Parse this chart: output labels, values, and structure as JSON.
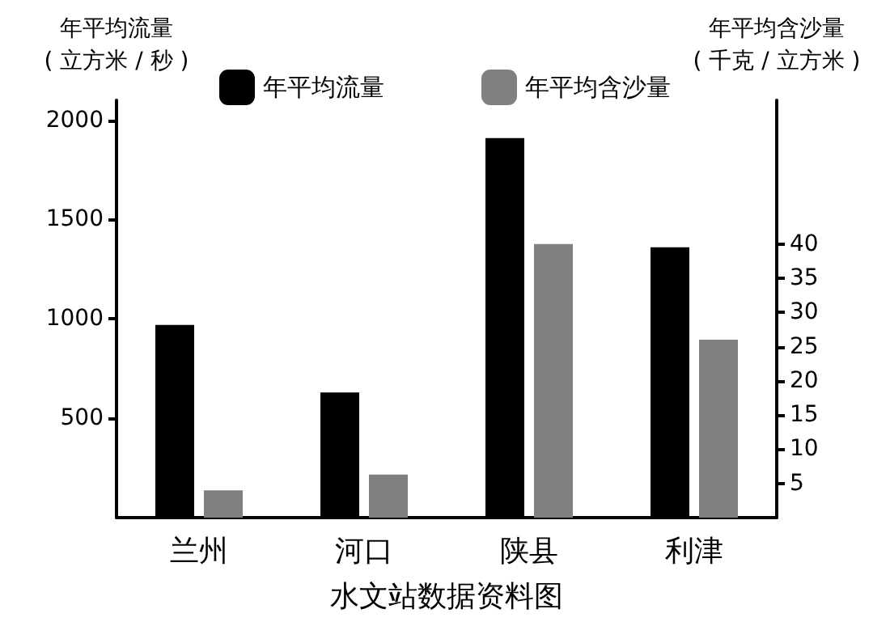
{
  "chart_data": {
    "type": "bar",
    "xlabel": "水文站数据资料图",
    "ylabel": "年平均流量\n( 立方米 / 秒 )",
    "y2label": "年平均含沙量\n( 千克 / 立方米 )",
    "categories": [
      "兰州",
      "河口",
      "陕县",
      "利津"
    ],
    "series": [
      {
        "name": "年平均流量",
        "color": "#000000",
        "values": [
          970,
          630,
          1910,
          1360
        ]
      },
      {
        "name": "年平均含沙量",
        "color": "#808080",
        "values": [
          4,
          6.3,
          40,
          26
        ],
        "axis": "y2"
      }
    ],
    "ylim": [
      0,
      2100
    ],
    "yticks": [
      500,
      1000,
      1500,
      2000
    ],
    "y2lim": [
      0,
      61
    ],
    "y2ticks": [
      5,
      10,
      15,
      20,
      25,
      30,
      35,
      40
    ],
    "legend": "top",
    "grid": false
  }
}
